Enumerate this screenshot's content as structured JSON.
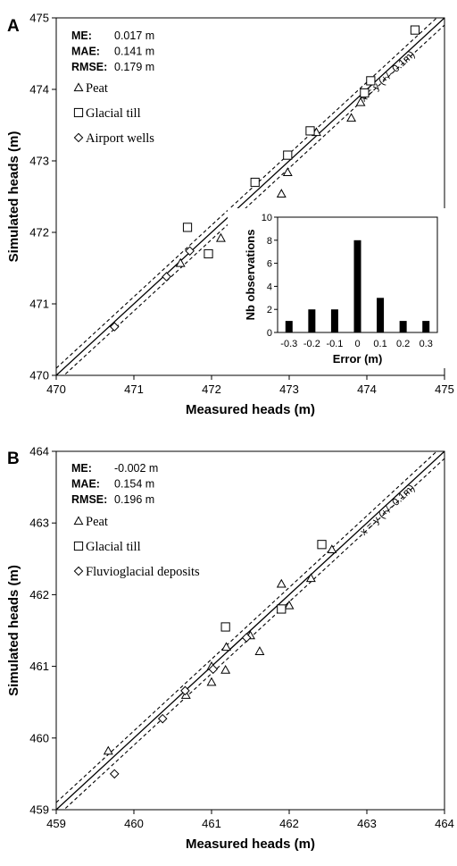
{
  "colors": {
    "marker_fill": "#ffffff",
    "marker_stroke": "#000000",
    "bar_fill": "#000000",
    "line": "#000000"
  },
  "chart_data": [
    {
      "panel_label": "A",
      "type": "scatter",
      "xlabel": "Measured heads (m)",
      "ylabel": "Simulated heads (m)",
      "xlim": [
        470,
        475
      ],
      "ylim": [
        470,
        475
      ],
      "xticks": [
        "470",
        "471",
        "472",
        "473",
        "474",
        "475"
      ],
      "yticks": [
        "470",
        "471",
        "472",
        "473",
        "474",
        "475"
      ],
      "grid": false,
      "stats": [
        {
          "label": "ME:",
          "value": "0.017 m"
        },
        {
          "label": "MAE:",
          "value": "0.141 m"
        },
        {
          "label": "RMSE:",
          "value": "0.179 m"
        }
      ],
      "line_label": "x = y (+/- 0.1m)",
      "series": [
        {
          "name": "Peat",
          "marker": "triangle",
          "points": [
            [
              471.6,
              471.57
            ],
            [
              472.12,
              471.92
            ],
            [
              472.9,
              472.54
            ],
            [
              472.98,
              472.84
            ],
            [
              473.35,
              473.4
            ],
            [
              473.8,
              473.6
            ],
            [
              473.92,
              473.82
            ]
          ]
        },
        {
          "name": "Glacial till",
          "marker": "square",
          "points": [
            [
              471.69,
              472.07
            ],
            [
              471.96,
              471.7
            ],
            [
              472.56,
              472.7
            ],
            [
              472.98,
              473.08
            ],
            [
              473.27,
              473.42
            ],
            [
              473.97,
              473.95
            ],
            [
              474.05,
              474.12
            ],
            [
              474.62,
              474.83
            ]
          ]
        },
        {
          "name": "Airport wells",
          "marker": "diamond",
          "points": [
            [
              470.75,
              470.68
            ],
            [
              471.42,
              471.38
            ],
            [
              471.72,
              471.74
            ]
          ]
        }
      ],
      "inset": {
        "type": "bar",
        "xlabel": "Error (m)",
        "ylabel": "Nb observations",
        "categories": [
          "-0.3",
          "-0.2",
          "-0.1",
          "0",
          "0.1",
          "0.2",
          "0.3"
        ],
        "values": [
          1,
          2,
          2,
          8,
          3,
          1,
          1
        ],
        "ylim": [
          0,
          10
        ],
        "yticks": [
          "0",
          "2",
          "4",
          "6",
          "8",
          "10"
        ]
      }
    },
    {
      "panel_label": "B",
      "type": "scatter",
      "xlabel": "Measured heads (m)",
      "ylabel": "Simulated heads (m)",
      "xlim": [
        459,
        464
      ],
      "ylim": [
        459,
        464
      ],
      "xticks": [
        "459",
        "460",
        "461",
        "462",
        "463",
        "464"
      ],
      "yticks": [
        "459",
        "460",
        "461",
        "462",
        "463",
        "464"
      ],
      "grid": false,
      "stats": [
        {
          "label": "ME:",
          "value": "-0.002 m"
        },
        {
          "label": "MAE:",
          "value": "0.154 m"
        },
        {
          "label": "RMSE:",
          "value": "0.196 m"
        }
      ],
      "line_label": "x = y (+/- 0.1m)",
      "series": [
        {
          "name": "Peat",
          "marker": "triangle",
          "points": [
            [
              459.67,
              459.82
            ],
            [
              460.67,
              460.6
            ],
            [
              461.0,
              460.78
            ],
            [
              461.0,
              461.0
            ],
            [
              461.18,
              460.95
            ],
            [
              461.19,
              461.27
            ],
            [
              461.5,
              461.43
            ],
            [
              461.62,
              461.21
            ],
            [
              461.9,
              462.15
            ],
            [
              462.0,
              461.85
            ],
            [
              462.28,
              462.23
            ],
            [
              462.55,
              462.63
            ]
          ]
        },
        {
          "name": "Glacial till",
          "marker": "square",
          "points": [
            [
              461.18,
              461.55
            ],
            [
              461.9,
              461.8
            ],
            [
              462.42,
              462.7
            ]
          ]
        },
        {
          "name": "Fluvioglacial deposits",
          "marker": "diamond",
          "points": [
            [
              459.75,
              459.5
            ],
            [
              460.37,
              460.27
            ],
            [
              460.66,
              460.66
            ],
            [
              461.02,
              460.96
            ],
            [
              461.45,
              461.4
            ]
          ]
        }
      ]
    }
  ]
}
